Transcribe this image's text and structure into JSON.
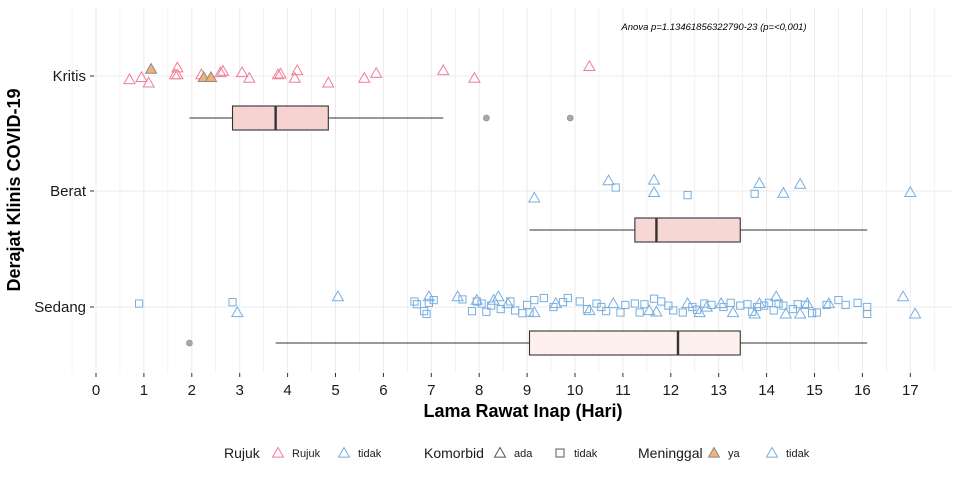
{
  "chart_data": {
    "type": "scatter",
    "title": "",
    "annotation": "Anova p=1.13461856322790-23 (p=<0,001)",
    "xlabel": "Lama Rawat Inap (Hari)",
    "ylabel": "Derajat Klinis COVID-19",
    "xlim": [
      0,
      17.8
    ],
    "x_ticks": [
      0,
      1,
      2,
      3,
      4,
      5,
      6,
      7,
      8,
      9,
      10,
      11,
      12,
      13,
      14,
      15,
      16,
      17
    ],
    "categories": [
      "Sedang",
      "Berat",
      "Kritis"
    ],
    "grid": true,
    "colors": {
      "rujuk": "#f27c98",
      "tidak": "#78aee0",
      "meninggal_fill": "#f2b07a",
      "box_fill_kritis": "#f6d2d1",
      "box_fill_berat": "#f6d7d4",
      "box_fill_sedang": "#fdf0ed",
      "outlier": "#a9a9a9"
    },
    "boxplots": [
      {
        "category": "Kritis",
        "whisker_low": 1.95,
        "q1": 2.85,
        "median": 3.75,
        "q3": 4.85,
        "whisker_high": 7.25,
        "outliers": [
          8.15,
          9.9
        ]
      },
      {
        "category": "Berat",
        "whisker_low": 9.05,
        "q1": 11.25,
        "median": 11.7,
        "q3": 13.45,
        "whisker_high": 16.1,
        "outliers": []
      },
      {
        "category": "Sedang",
        "whisker_low": 3.75,
        "q1": 9.05,
        "median": 12.15,
        "q3": 13.45,
        "whisker_high": 16.1,
        "outliers": [
          1.95
        ]
      }
    ],
    "series": [
      {
        "name": "Rujuk",
        "category": "Kritis",
        "shape": "triangle",
        "color": "rujuk",
        "points": [
          [
            0.7,
            -0.05
          ],
          [
            0.95,
            -0.02
          ],
          [
            1.1,
            -0.1
          ],
          [
            1.15,
            0.1,
            "ya"
          ],
          [
            1.65,
            0.02
          ],
          [
            1.7,
            0.02
          ],
          [
            1.7,
            0.12
          ],
          [
            2.2,
            0.02
          ],
          [
            2.25,
            -0.02,
            "ya"
          ],
          [
            2.4,
            -0.02,
            "ya"
          ],
          [
            2.6,
            0.05
          ],
          [
            2.65,
            0.07
          ],
          [
            3.05,
            0.05
          ],
          [
            3.2,
            -0.03
          ],
          [
            3.8,
            0.02
          ],
          [
            3.85,
            0.03
          ],
          [
            4.15,
            -0.03
          ],
          [
            4.2,
            0.08
          ],
          [
            4.85,
            -0.1
          ],
          [
            5.6,
            -0.03
          ],
          [
            5.85,
            0.04
          ],
          [
            7.25,
            0.08
          ],
          [
            7.9,
            -0.03
          ],
          [
            10.3,
            0.14
          ]
        ]
      },
      {
        "name": "tidak",
        "category": "Berat",
        "shape": "triangle",
        "color": "tidak",
        "points": [
          [
            9.15,
            -0.1
          ],
          [
            10.7,
            0.15
          ],
          [
            11.65,
            0.16
          ],
          [
            11.65,
            -0.02
          ],
          [
            13.85,
            0.11
          ],
          [
            14.35,
            -0.03
          ],
          [
            14.7,
            0.1
          ],
          [
            17.0,
            -0.02
          ]
        ]
      },
      {
        "name": "tidak",
        "category": "Berat",
        "shape": "square",
        "color": "tidak",
        "points": [
          [
            10.85,
            0.05
          ],
          [
            12.35,
            -0.06
          ],
          [
            13.75,
            -0.04
          ]
        ]
      },
      {
        "name": "tidak",
        "category": "Sedang",
        "shape": "triangle",
        "color": "tidak",
        "points": [
          [
            2.95,
            -0.08
          ],
          [
            5.05,
            0.15
          ],
          [
            6.95,
            0.15
          ],
          [
            7.55,
            0.15
          ],
          [
            7.95,
            0.1
          ],
          [
            8.3,
            0.1
          ],
          [
            8.4,
            0.15
          ],
          [
            8.6,
            0.05
          ],
          [
            9.15,
            -0.08
          ],
          [
            9.6,
            0.05
          ],
          [
            10.3,
            -0.05
          ],
          [
            10.8,
            0.05
          ],
          [
            11.55,
            -0.05
          ],
          [
            11.7,
            -0.07
          ],
          [
            12.35,
            0.05
          ],
          [
            12.6,
            -0.08
          ],
          [
            12.75,
            0.0
          ],
          [
            13.05,
            0.05
          ],
          [
            13.3,
            -0.08
          ],
          [
            13.75,
            -0.1
          ],
          [
            13.85,
            0.05
          ],
          [
            14.2,
            0.15
          ],
          [
            14.4,
            -0.1
          ],
          [
            14.7,
            -0.1
          ],
          [
            14.85,
            0.05
          ],
          [
            15.3,
            0.05
          ],
          [
            16.85,
            0.15
          ],
          [
            17.1,
            -0.1
          ]
        ]
      },
      {
        "name": "tidak",
        "category": "Sedang",
        "shape": "square",
        "color": "tidak",
        "points": [
          [
            0.9,
            0.05
          ],
          [
            2.85,
            0.07
          ],
          [
            6.65,
            0.08
          ],
          [
            6.7,
            0.04
          ],
          [
            6.85,
            -0.06
          ],
          [
            6.9,
            -0.1
          ],
          [
            6.95,
            0.06
          ],
          [
            7.05,
            0.1
          ],
          [
            7.65,
            0.11
          ],
          [
            7.85,
            -0.06
          ],
          [
            7.95,
            0.08
          ],
          [
            8.05,
            0.05
          ],
          [
            8.15,
            -0.07
          ],
          [
            8.25,
            0.02
          ],
          [
            8.45,
            -0.03
          ],
          [
            8.65,
            0.08
          ],
          [
            8.75,
            -0.05
          ],
          [
            8.9,
            -0.09
          ],
          [
            9.0,
            0.03
          ],
          [
            9.05,
            -0.08
          ],
          [
            9.15,
            0.1
          ],
          [
            9.35,
            0.13
          ],
          [
            9.55,
            0.0
          ],
          [
            9.75,
            0.07
          ],
          [
            9.85,
            0.13
          ],
          [
            10.1,
            0.08
          ],
          [
            10.25,
            -0.03
          ],
          [
            10.45,
            0.05
          ],
          [
            10.55,
            0.0
          ],
          [
            10.65,
            -0.06
          ],
          [
            10.95,
            -0.08
          ],
          [
            11.05,
            0.03
          ],
          [
            11.25,
            0.05
          ],
          [
            11.35,
            -0.08
          ],
          [
            11.45,
            0.04
          ],
          [
            11.65,
            0.12
          ],
          [
            11.8,
            0.08
          ],
          [
            11.95,
            0.02
          ],
          [
            12.05,
            -0.05
          ],
          [
            12.25,
            -0.08
          ],
          [
            12.45,
            0.0
          ],
          [
            12.55,
            -0.04
          ],
          [
            12.7,
            0.05
          ],
          [
            12.85,
            0.03
          ],
          [
            13.1,
            0.0
          ],
          [
            13.25,
            0.06
          ],
          [
            13.45,
            0.02
          ],
          [
            13.6,
            0.04
          ],
          [
            13.7,
            -0.07
          ],
          [
            13.8,
            0.0
          ],
          [
            13.95,
            0.02
          ],
          [
            14.05,
            0.06
          ],
          [
            14.15,
            -0.05
          ],
          [
            14.25,
            0.05
          ],
          [
            14.35,
            0.02
          ],
          [
            14.55,
            -0.03
          ],
          [
            14.65,
            0.04
          ],
          [
            14.8,
            0.03
          ],
          [
            14.95,
            -0.09
          ],
          [
            15.05,
            -0.08
          ],
          [
            15.25,
            0.03
          ],
          [
            15.5,
            0.1
          ],
          [
            15.65,
            0.03
          ],
          [
            15.9,
            0.06
          ],
          [
            16.1,
            0.0
          ],
          [
            16.1,
            -0.1
          ]
        ]
      }
    ],
    "legend": {
      "placement": "bottom",
      "groups": [
        {
          "title": "Rujuk",
          "items": [
            {
              "label": "Rujuk",
              "shape": "triangle",
              "color": "#f27c98"
            },
            {
              "label": "tidak",
              "shape": "triangle",
              "color": "#78aee0"
            }
          ]
        },
        {
          "title": "Komorbid",
          "items": [
            {
              "label": "ada",
              "shape": "triangle",
              "color": "#555555"
            },
            {
              "label": "tidak",
              "shape": "square",
              "color": "#555555"
            }
          ]
        },
        {
          "title": "Meninggal",
          "items": [
            {
              "label": "ya",
              "shape": "triangle-filled",
              "color": "#f2b07a"
            },
            {
              "label": "tidak",
              "shape": "triangle",
              "color": "#78aee0"
            }
          ]
        }
      ]
    }
  }
}
